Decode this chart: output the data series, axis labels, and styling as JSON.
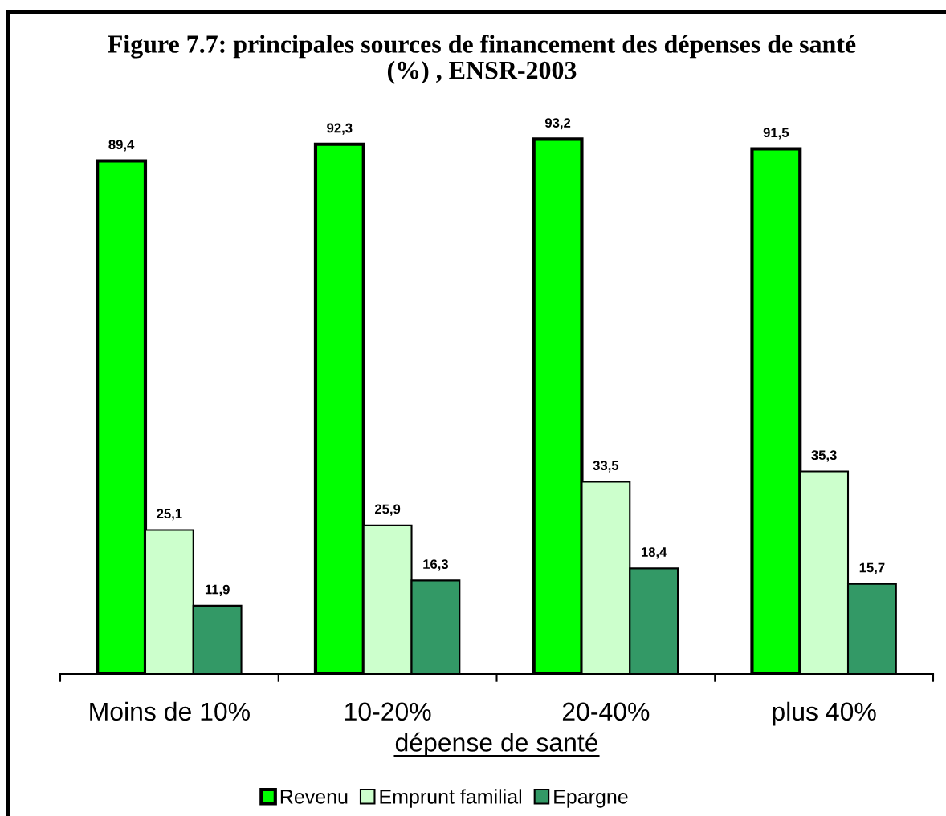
{
  "chart_data": {
    "type": "bar",
    "title": "Figure 7.7: principales sources de financement des dépenses de santé\n(%) , ENSR-2003",
    "xlabel": "dépense de santé",
    "categories": [
      "Moins de 10%",
      "10-20%",
      "20-40%",
      "plus 40%"
    ],
    "series": [
      {
        "name": "Revenu",
        "color": "#00ff00",
        "values": [
          89.4,
          92.3,
          93.2,
          91.5
        ],
        "value_labels": [
          "89,4",
          "92,3",
          "93,2",
          "91,5"
        ]
      },
      {
        "name": "Emprunt familial",
        "color": "#ccffcc",
        "values": [
          25.1,
          25.9,
          33.5,
          35.3
        ],
        "value_labels": [
          "25,1",
          "25,9",
          "33,5",
          "35,3"
        ]
      },
      {
        "name": "Epargne",
        "color": "#339966",
        "values": [
          11.9,
          16.3,
          18.4,
          15.7
        ],
        "value_labels": [
          "11,9",
          "16,3",
          "18,4",
          "15,7"
        ]
      }
    ],
    "legend": "bottom"
  }
}
